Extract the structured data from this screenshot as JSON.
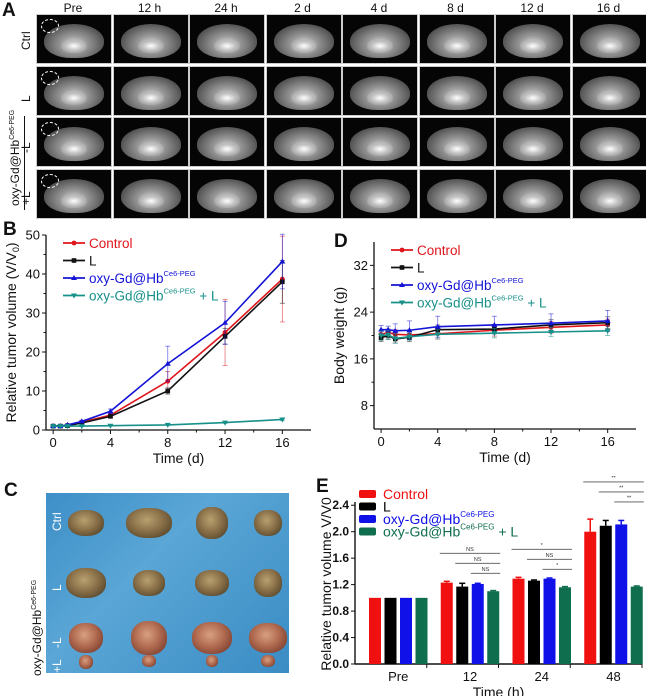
{
  "figure": {
    "panels": [
      "A",
      "B",
      "C",
      "D",
      "E"
    ]
  },
  "panel_a": {
    "letter": "A",
    "columns": [
      "Pre",
      "12 h",
      "24 h",
      "2 d",
      "4 d",
      "8 d",
      "12 d",
      "16 d"
    ],
    "rows": [
      "Ctrl",
      "L",
      "-L",
      "+L"
    ],
    "group_label": "oxy-Gd@Hb",
    "group_label_sup": "Ce6-PEG"
  },
  "panel_c": {
    "letter": "C",
    "rows": [
      "Ctrl",
      "L",
      "-L",
      "+L"
    ],
    "group_label": "oxy-Gd@Hb",
    "group_label_sup": "Ce6-PEG",
    "colors": {
      "background": "#4a9bd0"
    }
  },
  "chart_data": [
    {
      "id": "B",
      "letter": "B",
      "type": "line",
      "title": "",
      "xlabel": "Time (d)",
      "ylabel": "Relative tumor volume (V/V",
      "ylabel_sub": "0",
      "ylabel_end": ")",
      "xlim": [
        -0.5,
        18
      ],
      "ylim": [
        0,
        50
      ],
      "xticks": [
        0,
        4,
        8,
        12,
        16
      ],
      "yticks": [
        0,
        10,
        20,
        30,
        40,
        50
      ],
      "legend_position": "top-left",
      "x": [
        0,
        0.5,
        1,
        2,
        4,
        8,
        12,
        16
      ],
      "series": [
        {
          "name": "Control",
          "sup": "",
          "suffix": "",
          "color": "#e0151b",
          "marker": "circle",
          "values": [
            1,
            1,
            1.2,
            2,
            3.8,
            12.5,
            25,
            38.7
          ],
          "errors": [
            0.1,
            0.1,
            0.2,
            0.3,
            0.5,
            2.5,
            8.5,
            11
          ]
        },
        {
          "name": "L",
          "sup": "",
          "suffix": "",
          "color": "#111111",
          "marker": "square",
          "values": [
            1,
            1,
            1.1,
            1.8,
            3.5,
            10,
            24,
            38
          ],
          "errors": [
            0.1,
            0.1,
            0.2,
            0.3,
            0.4,
            0.8,
            2,
            5.5
          ]
        },
        {
          "name": "oxy-Gd@Hb",
          "sup": "Ce6-PEG",
          "suffix": "",
          "color": "#1414d6",
          "marker": "triangle-up",
          "values": [
            1,
            1,
            1.3,
            2.2,
            4.8,
            17,
            27.5,
            43.2
          ],
          "errors": [
            0.1,
            0.1,
            0.2,
            0.3,
            0.6,
            4.5,
            5.5,
            7
          ]
        },
        {
          "name": "oxy-Gd@Hb",
          "sup": "Ce6-PEG",
          "suffix": " + L",
          "color": "#17908a",
          "marker": "triangle-down",
          "values": [
            1,
            1,
            1,
            1,
            1.1,
            1.3,
            1.9,
            2.7
          ],
          "errors": [
            0.05,
            0.05,
            0.05,
            0.1,
            0.1,
            0.1,
            0.2,
            0.3
          ]
        }
      ]
    },
    {
      "id": "D",
      "letter": "D",
      "type": "line",
      "title": "",
      "xlabel": "Time (d)",
      "ylabel": "Body weight (g)",
      "xlim": [
        -0.5,
        18
      ],
      "ylim": [
        4,
        36
      ],
      "xticks": [
        0,
        4,
        8,
        12,
        16
      ],
      "yticks": [
        8,
        16,
        24,
        32
      ],
      "legend_position": "top-left",
      "x": [
        0,
        0.5,
        1,
        2,
        4,
        8,
        12,
        16
      ],
      "series": [
        {
          "name": "Control",
          "sup": "",
          "suffix": "",
          "color": "#e0151b",
          "marker": "circle",
          "values": [
            20.2,
            20.5,
            20.2,
            20.1,
            20.3,
            20.9,
            21.4,
            21.8
          ],
          "errors": [
            0.6,
            0.6,
            0.8,
            0.8,
            0.9,
            1.0,
            1.0,
            1.0
          ]
        },
        {
          "name": "L",
          "sup": "",
          "suffix": "",
          "color": "#111111",
          "marker": "square",
          "values": [
            19.6,
            20.0,
            19.4,
            19.7,
            21.0,
            21.1,
            21.8,
            22.2
          ],
          "errors": [
            0.6,
            0.6,
            0.7,
            0.7,
            0.8,
            0.8,
            0.9,
            1.0
          ]
        },
        {
          "name": "oxy-Gd@Hb",
          "sup": "Ce6-PEG",
          "suffix": "",
          "color": "#1414d6",
          "marker": "triangle-up",
          "values": [
            21.0,
            21.0,
            20.8,
            20.9,
            21.5,
            21.8,
            22.1,
            22.5
          ],
          "errors": [
            0.7,
            0.6,
            1.2,
            1.6,
            1.8,
            1.5,
            1.6,
            1.8
          ]
        },
        {
          "name": "oxy-Gd@Hb",
          "sup": "Ce6-PEG",
          "suffix": " + L",
          "color": "#17908a",
          "marker": "triangle-down",
          "values": [
            20.0,
            20.1,
            19.5,
            19.8,
            20.2,
            20.4,
            20.6,
            20.8
          ],
          "errors": [
            0.8,
            0.8,
            0.8,
            0.6,
            0.8,
            0.8,
            0.8,
            0.8
          ]
        }
      ]
    },
    {
      "id": "E",
      "letter": "E",
      "type": "bar",
      "title": "",
      "xlabel": "Time (h)",
      "ylabel": "Relative tumor volume V/V0",
      "categories": [
        "Pre",
        "12",
        "24",
        "48"
      ],
      "ylim": [
        0,
        2.6
      ],
      "yticks": [
        "0.0",
        "0.4",
        "0.8",
        "1.2",
        "1.6",
        "2.0",
        "2.4"
      ],
      "legend_position": "top-left",
      "series": [
        {
          "name": "Control",
          "sup": "",
          "suffix": "",
          "color": "#f01010",
          "values": [
            1.0,
            1.23,
            1.29,
            2.0
          ],
          "errors": [
            0,
            0.02,
            0.02,
            0.19
          ]
        },
        {
          "name": "L",
          "sup": "",
          "suffix": "",
          "color": "#000000",
          "values": [
            1.0,
            1.17,
            1.26,
            2.09
          ],
          "errors": [
            0,
            0.05,
            0.01,
            0.08
          ]
        },
        {
          "name": "oxy-Gd@Hb",
          "sup": "Ce6-PEG",
          "suffix": "",
          "color": "#1010e8",
          "values": [
            1.0,
            1.21,
            1.29,
            2.11
          ],
          "errors": [
            0,
            0.01,
            0.01,
            0.06
          ]
        },
        {
          "name": "oxy-Gd@Hb",
          "sup": "Ce6-PEG",
          "suffix": " + L",
          "color": "#0f6e4e",
          "values": [
            1.0,
            1.1,
            1.16,
            1.17
          ],
          "errors": [
            0,
            0.01,
            0.01,
            0.01
          ]
        }
      ],
      "significance": [
        {
          "category": 1,
          "from": 0,
          "to": 3,
          "label": "NS",
          "level": 3
        },
        {
          "category": 1,
          "from": 1,
          "to": 3,
          "label": "NS",
          "level": 2
        },
        {
          "category": 1,
          "from": 2,
          "to": 3,
          "label": "NS",
          "level": 1
        },
        {
          "category": 2,
          "from": 0,
          "to": 3,
          "label": "*",
          "level": 3
        },
        {
          "category": 2,
          "from": 1,
          "to": 3,
          "label": "NS",
          "level": 2
        },
        {
          "category": 2,
          "from": 2,
          "to": 3,
          "label": "*",
          "level": 1
        },
        {
          "category": 3,
          "from": 0,
          "to": 3,
          "label": "**",
          "level": 3
        },
        {
          "category": 3,
          "from": 1,
          "to": 3,
          "label": "**",
          "level": 2
        },
        {
          "category": 3,
          "from": 2,
          "to": 3,
          "label": "**",
          "level": 1
        }
      ]
    }
  ]
}
